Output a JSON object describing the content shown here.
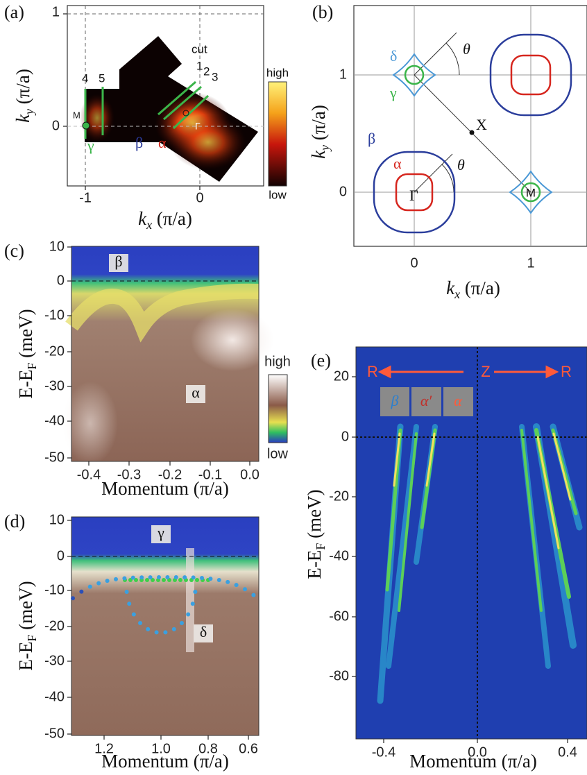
{
  "panels": {
    "a": {
      "label": "(a)",
      "y_axis": {
        "symbol": "k",
        "sub": "y",
        "unit": " (π/a)"
      },
      "x_axis": {
        "symbol": "k",
        "sub": "x",
        "unit": " (π/a)"
      },
      "yticks": [
        "1",
        "0"
      ],
      "xticks": [
        "-1",
        "0"
      ],
      "colorbar": [
        "high",
        "low"
      ],
      "annotations": [
        "cut",
        "1",
        "2",
        "3",
        "4",
        "5",
        "M",
        "Γ",
        "γ",
        "β",
        "α"
      ]
    },
    "b": {
      "label": "(b)",
      "y_axis": {
        "symbol": "k",
        "sub": "y",
        "unit": " (π/a)"
      },
      "x_axis": {
        "symbol": "k",
        "sub": "x",
        "unit": " (π/a)"
      },
      "yticks": [
        "1",
        "0"
      ],
      "xticks": [
        "0",
        "1"
      ],
      "annotations": [
        "δ",
        "θ",
        "γ",
        "X",
        "β",
        "α",
        "θ",
        "Γ",
        "M"
      ]
    },
    "c": {
      "label": "(c)",
      "y_axis": {
        "text": "E-E",
        "sub": "F",
        "unit": " (meV)"
      },
      "x_axis": "Momentum (π/a)",
      "yticks": [
        "10",
        "0",
        "-10",
        "-20",
        "-30",
        "-40",
        "-50"
      ],
      "xticks": [
        "-0.4",
        "-0.3",
        "-0.2",
        "-0.1",
        "0.0"
      ],
      "colorbar": [
        "high",
        "low"
      ],
      "annotations": [
        "β",
        "α"
      ]
    },
    "d": {
      "label": "(d)",
      "y_axis": {
        "text": "E-E",
        "sub": "F",
        "unit": " (meV)"
      },
      "x_axis": "Momentum (π/a)",
      "yticks": [
        "10",
        "0",
        "-10",
        "-20",
        "-30",
        "-40",
        "-50"
      ],
      "xticks": [
        "1.2",
        "1.0",
        "0.8",
        "0.6"
      ],
      "annotations": [
        "γ",
        "δ"
      ]
    },
    "e": {
      "label": "(e)",
      "y_axis": {
        "text": "E-E",
        "sub": "F",
        "unit": " (meV)"
      },
      "x_axis": "Momentum (π/a)",
      "yticks": [
        "20",
        "0",
        "-20",
        "-40",
        "-60",
        "-80"
      ],
      "xticks": [
        "-0.4",
        "0.0",
        "0.4"
      ],
      "annotations": [
        "R",
        "Z",
        "R",
        "β",
        "α′",
        "α"
      ]
    }
  }
}
